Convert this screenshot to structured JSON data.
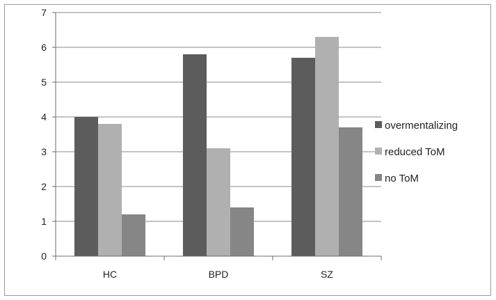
{
  "chart_data": {
    "type": "bar",
    "categories": [
      "HC",
      "BPD",
      "SZ"
    ],
    "series": [
      {
        "name": "overmentalizing",
        "color": "#5c5c5c",
        "values": [
          4.0,
          5.8,
          5.7
        ]
      },
      {
        "name": "reduced ToM",
        "color": "#b0b0b0",
        "values": [
          3.8,
          3.1,
          6.3
        ]
      },
      {
        "name": "no ToM",
        "color": "#868686",
        "values": [
          1.2,
          1.4,
          3.7
        ]
      }
    ],
    "title": "",
    "xlabel": "",
    "ylabel": "",
    "ylim": [
      0,
      7
    ],
    "yticks": [
      0,
      1,
      2,
      3,
      4,
      5,
      6,
      7
    ],
    "grid": true,
    "legend_position": "right"
  }
}
